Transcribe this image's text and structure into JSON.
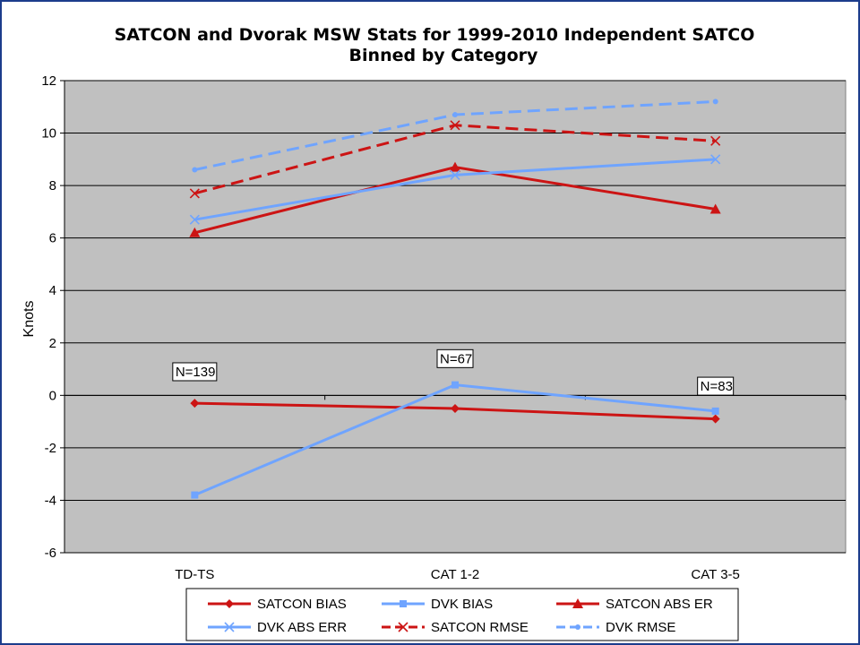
{
  "chart_data": {
    "type": "line",
    "title": "SATCON and Dvorak MSW Stats for 1999-2010 Independent SATCO",
    "subtitle": "Binned by Category",
    "xlabel": "",
    "ylabel": "Knots",
    "categories": [
      "TD-TS",
      "CAT 1-2",
      "CAT 3-5"
    ],
    "ylim": [
      -6,
      12
    ],
    "yticks": [
      -6,
      -4,
      -2,
      0,
      2,
      4,
      6,
      8,
      10,
      12
    ],
    "grid": true,
    "legend_position": "bottom",
    "series": [
      {
        "name": "SATCON BIAS",
        "values": [
          -0.3,
          -0.5,
          -0.9
        ],
        "color": "#cc1414",
        "dash": "solid",
        "marker": "diamond"
      },
      {
        "name": "DVK BIAS",
        "values": [
          -3.8,
          0.4,
          -0.6
        ],
        "color": "#6fa4ff",
        "dash": "solid",
        "marker": "square"
      },
      {
        "name": "SATCON ABS ER",
        "values": [
          6.2,
          8.7,
          7.1
        ],
        "color": "#cc1414",
        "dash": "solid",
        "marker": "triangle"
      },
      {
        "name": "DVK ABS ERR",
        "values": [
          6.7,
          8.4,
          9.0
        ],
        "color": "#6fa4ff",
        "dash": "solid",
        "marker": "x"
      },
      {
        "name": "SATCON RMSE",
        "values": [
          7.7,
          10.3,
          9.7
        ],
        "color": "#cc1414",
        "dash": "dashed",
        "marker": "x"
      },
      {
        "name": "DVK RMSE",
        "values": [
          8.6,
          10.7,
          11.2
        ],
        "color": "#6fa4ff",
        "dash": "dashed",
        "marker": "dot"
      }
    ],
    "annotations": [
      {
        "text": "N=139",
        "category": "TD-TS",
        "y": 0.9
      },
      {
        "text": "N=67",
        "category": "CAT 1-2",
        "y": 1.4
      },
      {
        "text": "N=83",
        "category": "CAT 3-5",
        "y": 0.35
      }
    ],
    "colors": {
      "plot_background": "#c0c0c0",
      "frame_border": "#1c3c8c"
    }
  }
}
